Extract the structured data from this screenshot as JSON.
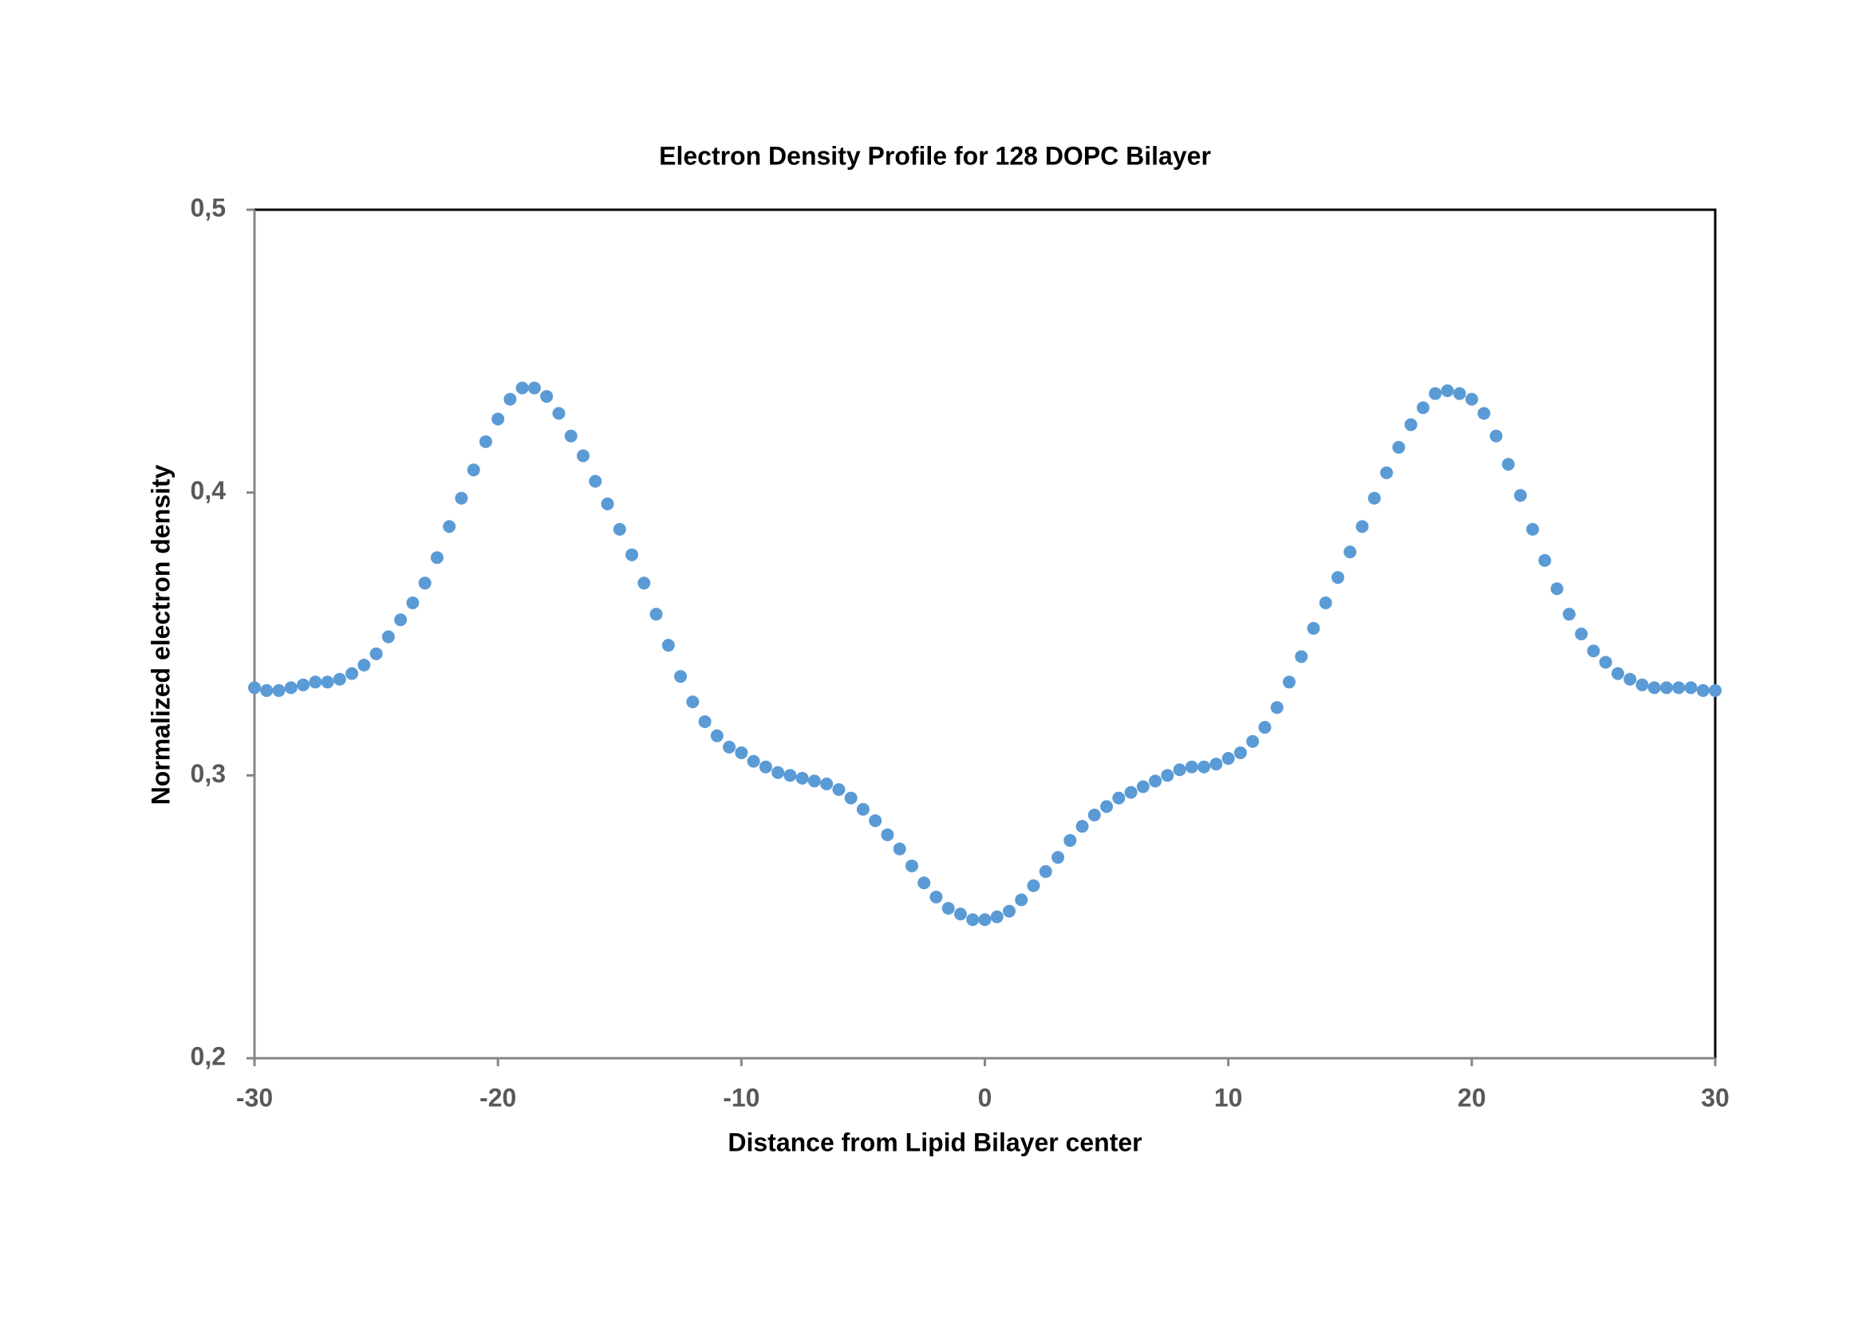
{
  "chart_data": {
    "type": "scatter",
    "title": "Electron Density Profile for 128 DOPC Bilayer",
    "x_label": "Distance from Lipid Bilayer center",
    "y_label": "Normalized electron density",
    "xlim": [
      -30,
      30
    ],
    "xticks": [
      -30,
      -20,
      -10,
      0,
      10,
      20,
      30
    ],
    "ylim": [
      0.2,
      0.5
    ],
    "yticks": [
      {
        "value": 0.2,
        "label": "0,2"
      },
      {
        "value": 0.3,
        "label": "0,3"
      },
      {
        "value": 0.4,
        "label": "0,4"
      },
      {
        "value": 0.5,
        "label": "0,5"
      }
    ],
    "grid": false,
    "color": "#5b9bd5",
    "x": [
      -30,
      -29.5,
      -29,
      -28.5,
      -28,
      -27.5,
      -27,
      -26.5,
      -26,
      -25.5,
      -25,
      -24.5,
      -24,
      -23.5,
      -23,
      -22.5,
      -22,
      -21.5,
      -21,
      -20.5,
      -20,
      -19.5,
      -19,
      -18.5,
      -18,
      -17.5,
      -17,
      -16.5,
      -16,
      -15.5,
      -15,
      -14.5,
      -14,
      -13.5,
      -13,
      -12.5,
      -12,
      -11.5,
      -11,
      -10.5,
      -10,
      -9.5,
      -9,
      -8.5,
      -8,
      -7.5,
      -7,
      -6.5,
      -6,
      -5.5,
      -5,
      -4.5,
      -4,
      -3.5,
      -3,
      -2.5,
      -2,
      -1.5,
      -1,
      -0.5,
      0,
      0.5,
      1,
      1.5,
      2,
      2.5,
      3,
      3.5,
      4,
      4.5,
      5,
      5.5,
      6,
      6.5,
      7,
      7.5,
      8,
      8.5,
      9,
      9.5,
      10,
      10.5,
      11,
      11.5,
      12,
      12.5,
      13,
      13.5,
      14,
      14.5,
      15,
      15.5,
      16,
      16.5,
      17,
      17.5,
      18,
      18.5,
      19,
      19.5,
      20,
      20.5,
      21,
      21.5,
      22,
      22.5,
      23,
      23.5,
      24,
      24.5,
      25,
      25.5,
      26,
      26.5,
      27,
      27.5,
      28,
      28.5,
      29,
      29.5,
      30
    ],
    "values": [
      0.331,
      0.33,
      0.33,
      0.331,
      0.332,
      0.333,
      0.333,
      0.334,
      0.336,
      0.339,
      0.343,
      0.349,
      0.355,
      0.361,
      0.368,
      0.377,
      0.388,
      0.398,
      0.408,
      0.418,
      0.426,
      0.433,
      0.437,
      0.437,
      0.434,
      0.428,
      0.42,
      0.413,
      0.404,
      0.396,
      0.387,
      0.378,
      0.368,
      0.357,
      0.346,
      0.335,
      0.326,
      0.319,
      0.314,
      0.31,
      0.308,
      0.305,
      0.303,
      0.301,
      0.3,
      0.299,
      0.298,
      0.297,
      0.295,
      0.292,
      0.288,
      0.284,
      0.279,
      0.274,
      0.268,
      0.262,
      0.257,
      0.253,
      0.251,
      0.249,
      0.249,
      0.25,
      0.252,
      0.256,
      0.261,
      0.266,
      0.271,
      0.277,
      0.282,
      0.286,
      0.289,
      0.292,
      0.294,
      0.296,
      0.298,
      0.3,
      0.302,
      0.303,
      0.303,
      0.304,
      0.306,
      0.308,
      0.312,
      0.317,
      0.324,
      0.333,
      0.342,
      0.352,
      0.361,
      0.37,
      0.379,
      0.388,
      0.398,
      0.407,
      0.416,
      0.424,
      0.43,
      0.435,
      0.436,
      0.435,
      0.433,
      0.428,
      0.42,
      0.41,
      0.399,
      0.387,
      0.376,
      0.366,
      0.357,
      0.35,
      0.344,
      0.34,
      0.336,
      0.334,
      0.332,
      0.331,
      0.331,
      0.331,
      0.331,
      0.33,
      0.33
    ]
  }
}
